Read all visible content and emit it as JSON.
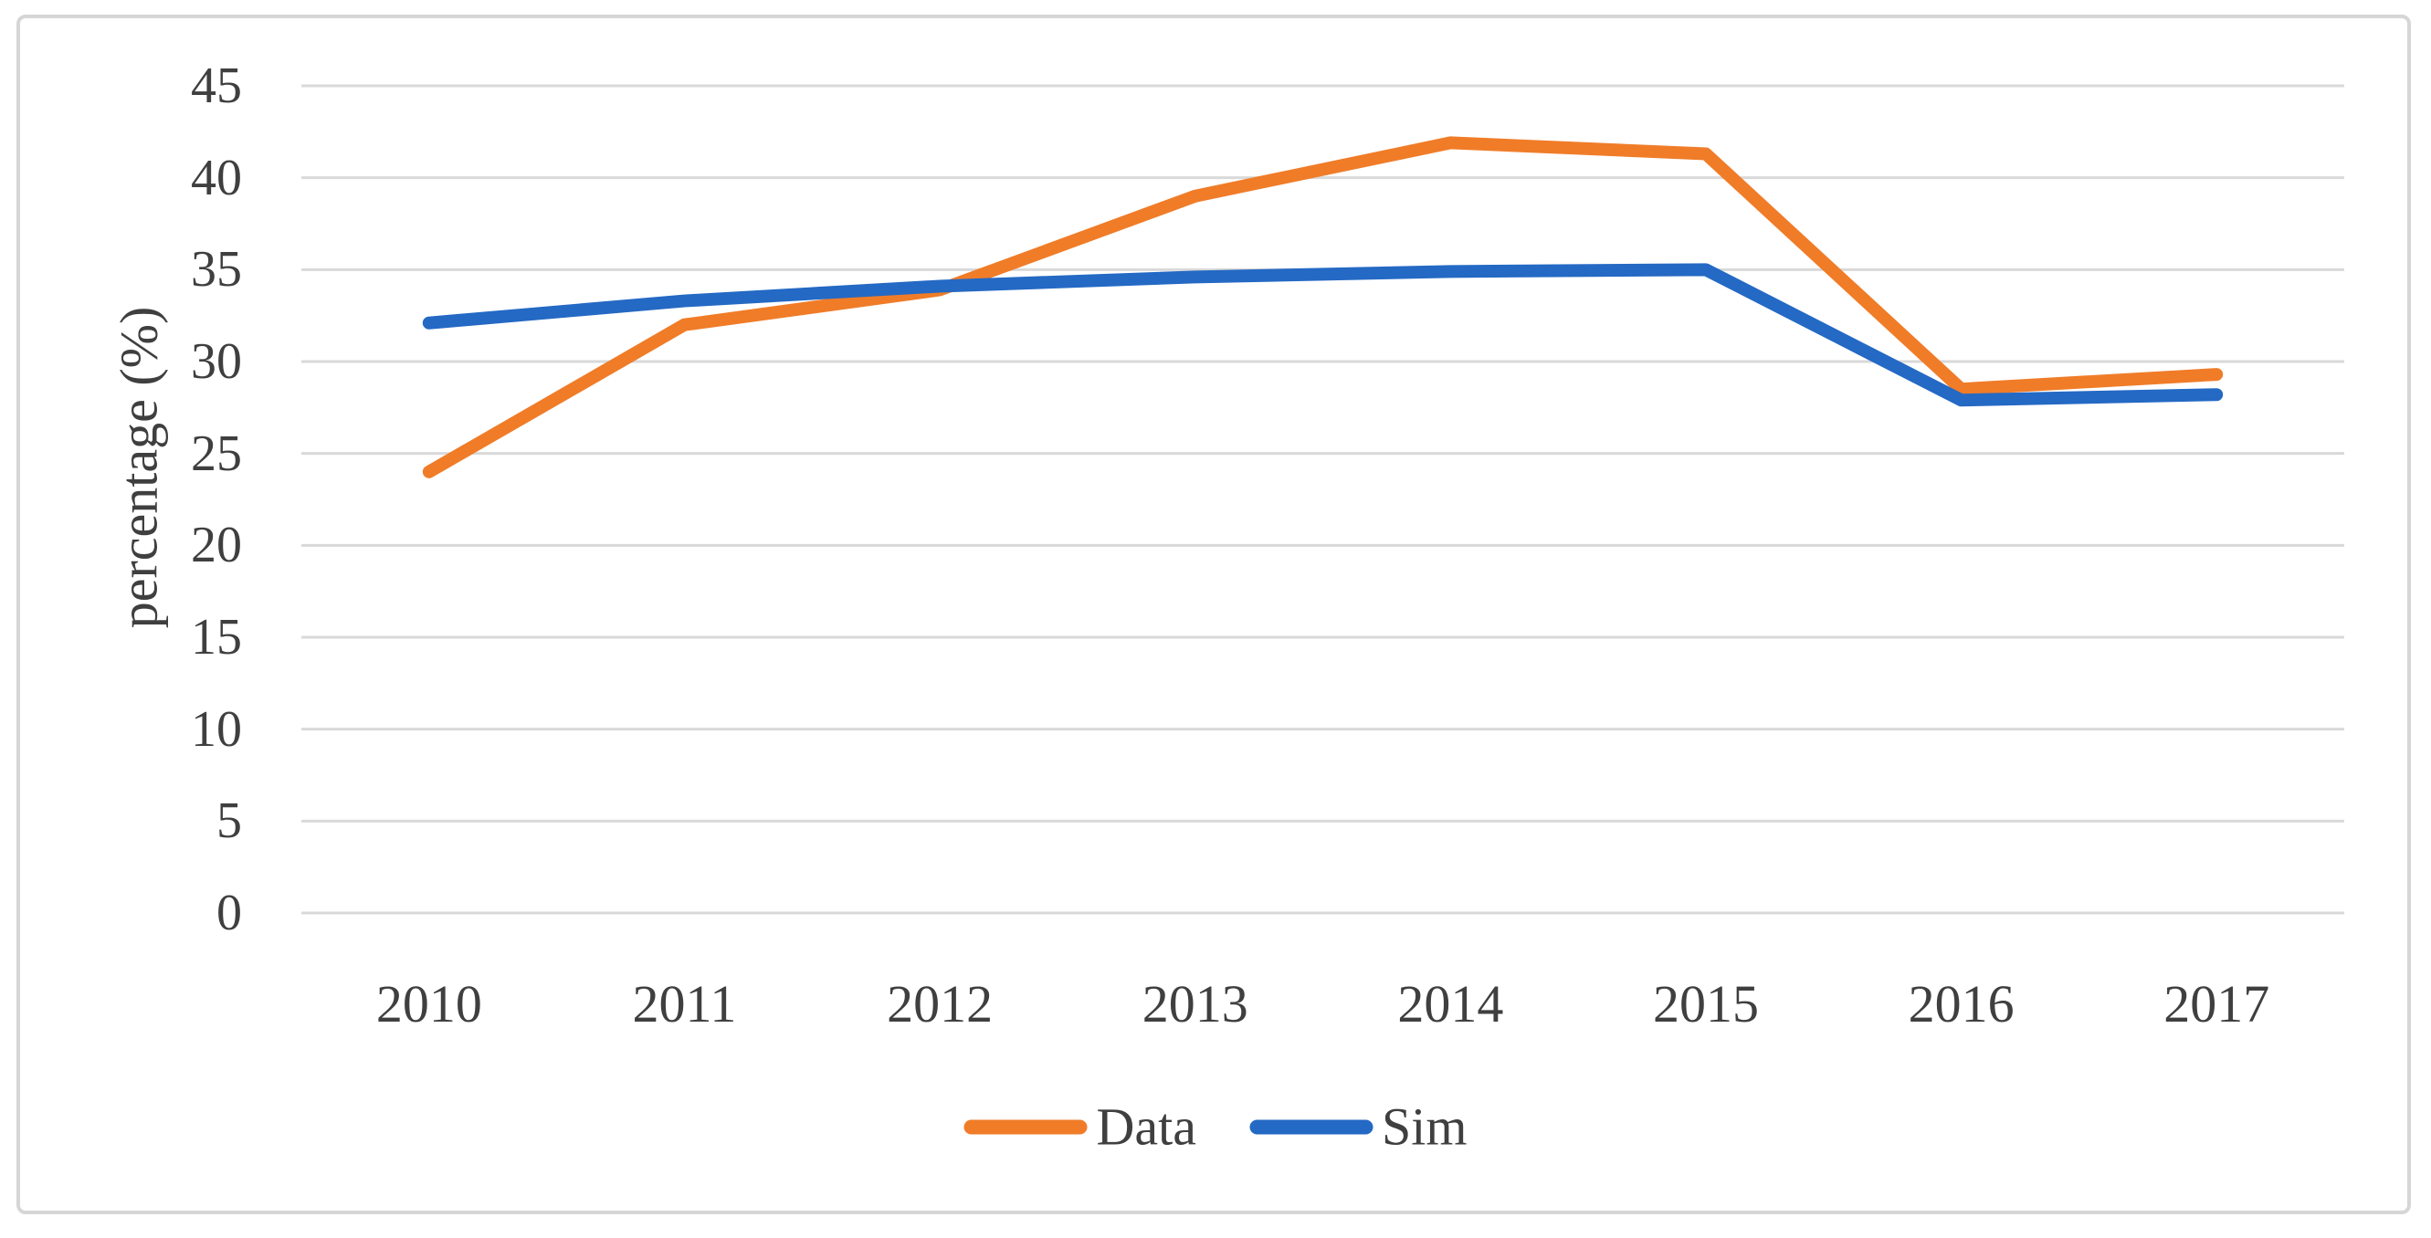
{
  "chart_data": {
    "type": "line",
    "title": "",
    "xlabel": "",
    "ylabel": "percentage (%)",
    "x": [
      "2010",
      "2011",
      "2012",
      "2013",
      "2014",
      "2015",
      "2016",
      "2017"
    ],
    "series": [
      {
        "name": "Data",
        "color": "#F07C28",
        "values": [
          24.0,
          32.0,
          33.9,
          39.0,
          41.9,
          41.3,
          28.5,
          29.3
        ]
      },
      {
        "name": "Sim",
        "color": "#2469C4",
        "values": [
          32.1,
          33.3,
          34.1,
          34.6,
          34.9,
          35.0,
          27.9,
          28.2
        ]
      }
    ],
    "ylim": [
      0,
      45
    ],
    "y_ticks": [
      45,
      40,
      35,
      30,
      25,
      20,
      15,
      10,
      5,
      0
    ],
    "grid": "horizontal",
    "grid_color": "#D9D9D9",
    "frame_color": "#D6D6D6",
    "text_color": "#3F3F3F",
    "legend_position": "bottom-center",
    "legend_labels": [
      "Data",
      "Sim"
    ]
  }
}
